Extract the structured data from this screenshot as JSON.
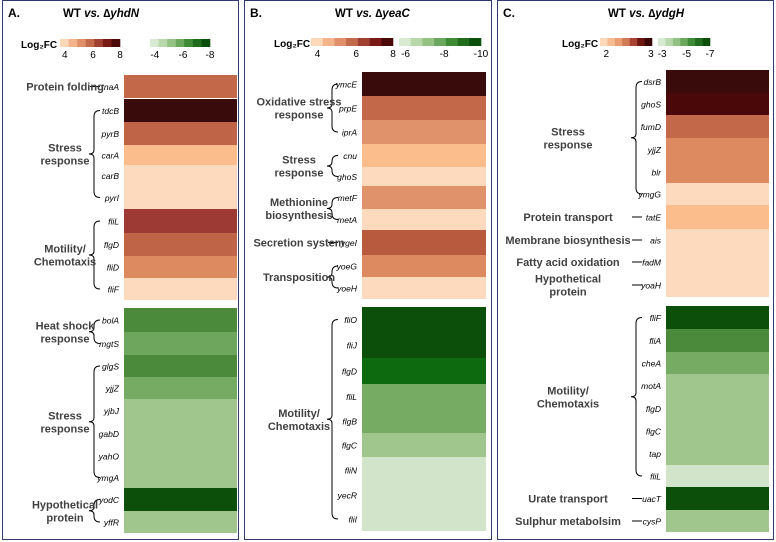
{
  "legend_label": "Log₂FC",
  "panels": [
    {
      "label": "A.",
      "title_prefix": "WT ",
      "title_vs": "vs.",
      "title_mutant": " ∆yhdN",
      "legend": {
        "pos_ticks": [
          "4",
          "6",
          "8"
        ],
        "neg_ticks": [
          "-4",
          "-6",
          "-8"
        ],
        "pos_colors": [
          "#fdd9b9",
          "#f3b48b",
          "#e0916a",
          "#c46a4c",
          "#a04030",
          "#7a1a16",
          "#4a0808"
        ],
        "neg_colors": [
          "#d8ebd2",
          "#b8d8ac",
          "#94c283",
          "#6aa85d",
          "#3f8a35",
          "#1f6d1d",
          "#0b4e0b"
        ]
      },
      "categories": [
        {
          "name": "Protein folding",
          "genes": [
            "tnaA"
          ]
        },
        {
          "name": "Stress response",
          "genes": [
            "tdcB",
            "pyrB",
            "carA",
            "carB",
            "pyrI"
          ]
        },
        {
          "name": "Motility/ Chemotaxis",
          "genes": [
            "fliL",
            "flgD",
            "fliD",
            "fliF"
          ]
        },
        {
          "name": "Heat shock response",
          "genes": [
            "bolA",
            "mgtS"
          ]
        },
        {
          "name": "Stress response",
          "genes": [
            "glgS",
            "yjjZ",
            "yjbJ",
            "gabD",
            "yahO",
            "ymgA"
          ]
        },
        {
          "name": "Hypothetical protein",
          "genes": [
            "yodC",
            "yffR"
          ]
        }
      ],
      "heat_colors": [
        "#c4684a",
        "#3a0b0b",
        "#c06448",
        "#fcbd8c",
        "#fdd9be",
        "#fdd9be",
        "#9c3a33",
        "#c06448",
        "#dd8a60",
        "#fdd9be",
        "#4a8a3a",
        "#6fa65d",
        "#4a8a3a",
        "#76ab64",
        "#a0c68e",
        "#a0c68e",
        "#a0c68e",
        "#a0c68e",
        "#0b4f0b",
        "#a0c68e"
      ]
    },
    {
      "label": "B.",
      "title_prefix": "WT ",
      "title_vs": "vs.",
      "title_mutant": " ∆yeaC",
      "legend": {
        "pos_ticks": [
          "4",
          "6",
          "8"
        ],
        "neg_ticks": [
          "-6",
          "-8",
          "-10"
        ],
        "pos_colors": [
          "#fdd9b9",
          "#f3b48b",
          "#e0916a",
          "#c46a4c",
          "#a04030",
          "#7a1a16",
          "#4a0808"
        ],
        "neg_colors": [
          "#d8ebd2",
          "#b8d8ac",
          "#94c283",
          "#6aa85d",
          "#3f8a35",
          "#1f6d1d",
          "#0b4e0b"
        ]
      },
      "categories": [
        {
          "name": "Oxidative stress response",
          "genes": [
            "ymcE",
            "prpE",
            "iprA"
          ]
        },
        {
          "name": "Stress response",
          "genes": [
            "cnu",
            "ghoS"
          ]
        },
        {
          "name": "Methionine biosynthesis",
          "genes": [
            "metF",
            "metA"
          ]
        },
        {
          "name": "Secretion system",
          "genes": [
            "ygeI"
          ]
        },
        {
          "name": "Transposition",
          "genes": [
            "yoeG",
            "yoeH"
          ]
        },
        {
          "name": "Motility/ Chemotaxis",
          "genes": [
            "fliO",
            "fliJ",
            "flgD",
            "fliL",
            "flgB",
            "flgC",
            "fliN",
            "yecR",
            "fliI"
          ]
        }
      ],
      "heat_colors": [
        "#3a0b0b",
        "#c4684a",
        "#e0936a",
        "#fcbd8c",
        "#fdd9be",
        "#e0936a",
        "#fdd9be",
        "#b85a3e",
        "#dd8a60",
        "#fdd9be",
        "#0b4f0b",
        "#0b4f0b",
        "#0e6a0e",
        "#76ab64",
        "#76ab64",
        "#a0c68e",
        "#d2e5cb",
        "#d2e5cb",
        "#d2e5cb"
      ]
    },
    {
      "label": "C.",
      "title_prefix": "WT ",
      "title_vs": "vs.",
      "title_mutant": " ∆ydgH",
      "legend": {
        "pos_ticks": [
          "2",
          "3"
        ],
        "neg_ticks": [
          "-3",
          "-5",
          "-7"
        ],
        "pos_colors": [
          "#fdd9b9",
          "#f6bd92",
          "#e99f72",
          "#d07a56",
          "#a84232",
          "#6e1612",
          "#3a0606"
        ],
        "neg_colors": [
          "#d8ebd2",
          "#b8d8ac",
          "#94c283",
          "#6aa85d",
          "#3f8a35",
          "#1f6d1d",
          "#0b4e0b"
        ]
      },
      "categories": [
        {
          "name": "Stress response",
          "genes": [
            "dsrB",
            "ghoS",
            "fumD",
            "yjjZ",
            "blr",
            "ymgG"
          ]
        },
        {
          "name": "Protein transport",
          "genes": [
            "tatE"
          ]
        },
        {
          "name": "Membrane biosynthesis",
          "genes": [
            "ais"
          ]
        },
        {
          "name": "Fatty acid oxidation",
          "genes": [
            "fadM"
          ]
        },
        {
          "name": "Hypothetical protein",
          "genes": [
            "yoaH"
          ]
        },
        {
          "name": "Motility/ Chemotaxis",
          "genes": [
            "fliF",
            "fliA",
            "cheA",
            "motA",
            "flgD",
            "flgC",
            "tap",
            "fliL"
          ]
        },
        {
          "name": "Urate transport",
          "genes": [
            "uacT"
          ]
        },
        {
          "name": "Sulphur metabolsim",
          "genes": [
            "cysP"
          ]
        }
      ],
      "heat_colors": [
        "#3a0b0b",
        "#4a0808",
        "#c4684a",
        "#dd8a60",
        "#dd8a60",
        "#fdd9be",
        "#fcbd8c",
        "#fdd9be",
        "#fdd9be",
        "#fdd9be",
        "#0b4f0b",
        "#4a8a3a",
        "#76ab64",
        "#a0c68e",
        "#a0c68e",
        "#a0c68e",
        "#a0c68e",
        "#d2e5cb",
        "#0b4f0b",
        "#a0c68e"
      ]
    }
  ]
}
